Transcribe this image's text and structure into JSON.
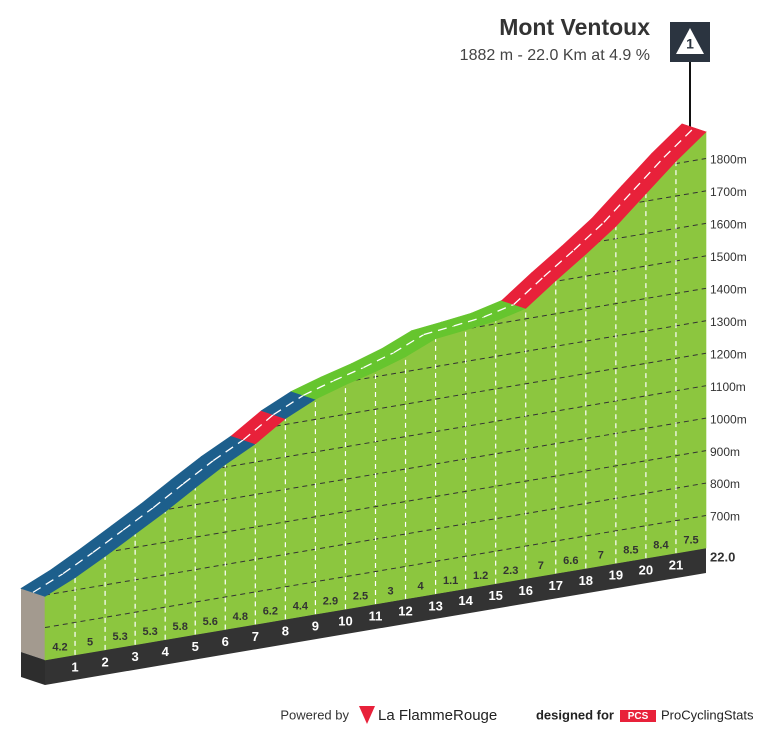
{
  "chart_data": {
    "type": "profile",
    "title": "Mont Ventoux",
    "subtitle": "1882 m - 22.0 Km at 4.9 %",
    "climb_category": "1",
    "summit_elevation": 1882,
    "values": [
      4.2,
      5.0,
      5.3,
      5.3,
      5.8,
      5.6,
      4.8,
      6.2,
      4.4,
      2.9,
      2.5,
      3.0,
      4.0,
      1.1,
      1.2,
      2.3,
      7.0,
      6.6,
      7.0,
      8.5,
      8.4,
      7.5
    ],
    "colors": [
      "#1d5f8c",
      "#1d5f8c",
      "#1d5f8c",
      "#1d5f8c",
      "#1d5f8c",
      "#1d5f8c",
      "#1d5f8c",
      "#e8213a",
      "#1d5f8c",
      "#66c52e",
      "#66c52e",
      "#66c52e",
      "#66c52e",
      "#66c52e",
      "#66c52e",
      "#66c52e",
      "#e8213a",
      "#e8213a",
      "#e8213a",
      "#e8213a",
      "#e8213a",
      "#e8213a"
    ],
    "face_color": "#8cc63f",
    "xlim": [
      0,
      22
    ],
    "xticks": [
      1,
      2,
      3,
      4,
      5,
      6,
      7,
      8,
      9,
      10,
      11,
      12,
      13,
      14,
      15,
      16,
      17,
      18,
      19,
      20,
      21,
      {
        "value": 22,
        "label": "22.0"
      }
    ],
    "ylim": [
      600,
      1900
    ],
    "yticks": [
      {
        "value": 700,
        "label": "700m"
      },
      {
        "value": 800,
        "label": "800m"
      },
      {
        "value": 900,
        "label": "900m"
      },
      {
        "value": 1000,
        "label": "1000m"
      },
      {
        "value": 1100,
        "label": "1100m"
      },
      {
        "value": 1200,
        "label": "1200m"
      },
      {
        "value": 1300,
        "label": "1300m"
      },
      {
        "value": 1400,
        "label": "1400m"
      },
      {
        "value": 1500,
        "label": "1500m"
      },
      {
        "value": 1600,
        "label": "1600m"
      },
      {
        "value": 1700,
        "label": "1700m"
      },
      {
        "value": 1800,
        "label": "1800m"
      }
    ]
  },
  "footer": {
    "powered": "Powered by",
    "brand": "La FlammeRouge",
    "designed": "designed for",
    "pcs": "PCS",
    "site": "ProCyclingStats"
  }
}
